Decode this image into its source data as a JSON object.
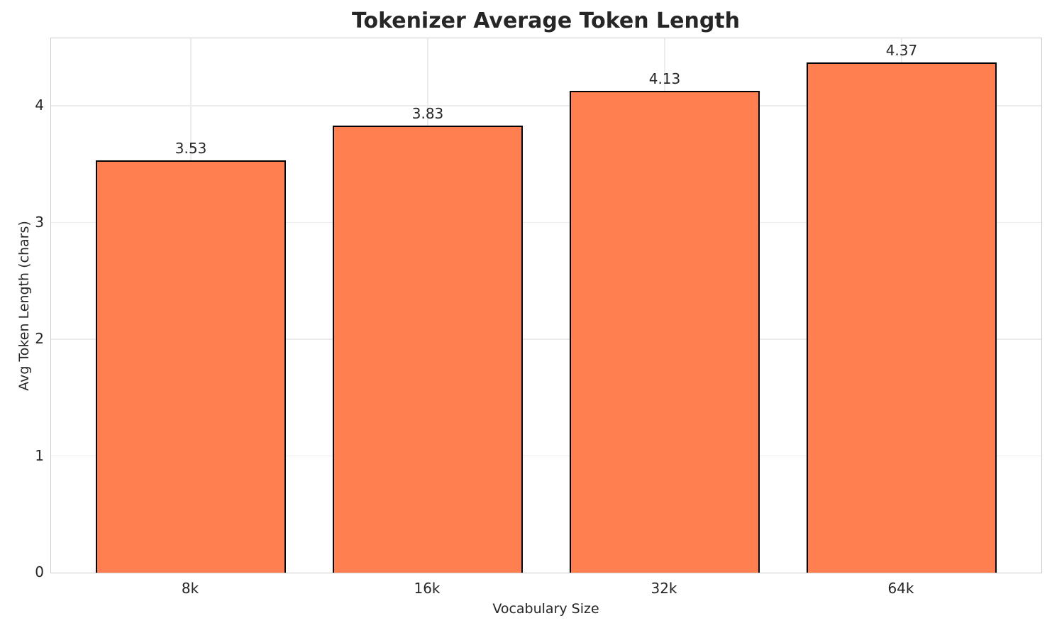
{
  "title": "Tokenizer Average Token Length",
  "chart_data": {
    "type": "bar",
    "title": "Tokenizer Average Token Length",
    "xlabel": "Vocabulary Size",
    "ylabel": "Avg Token Length (chars)",
    "categories": [
      "8k",
      "16k",
      "32k",
      "64k"
    ],
    "values": [
      3.53,
      3.83,
      4.13,
      4.37
    ],
    "bar_labels": [
      "3.53",
      "3.83",
      "4.13",
      "4.37"
    ],
    "yticks": [
      0,
      1,
      2,
      3,
      4
    ],
    "ylim": [
      0,
      4.58
    ],
    "grid": true,
    "legend": "none",
    "bar_color": "#FF7F50",
    "bar_edge_color": "#000000",
    "grid_color": "#ececec",
    "spine_color": "#cccccc",
    "text_color": "#262626"
  }
}
